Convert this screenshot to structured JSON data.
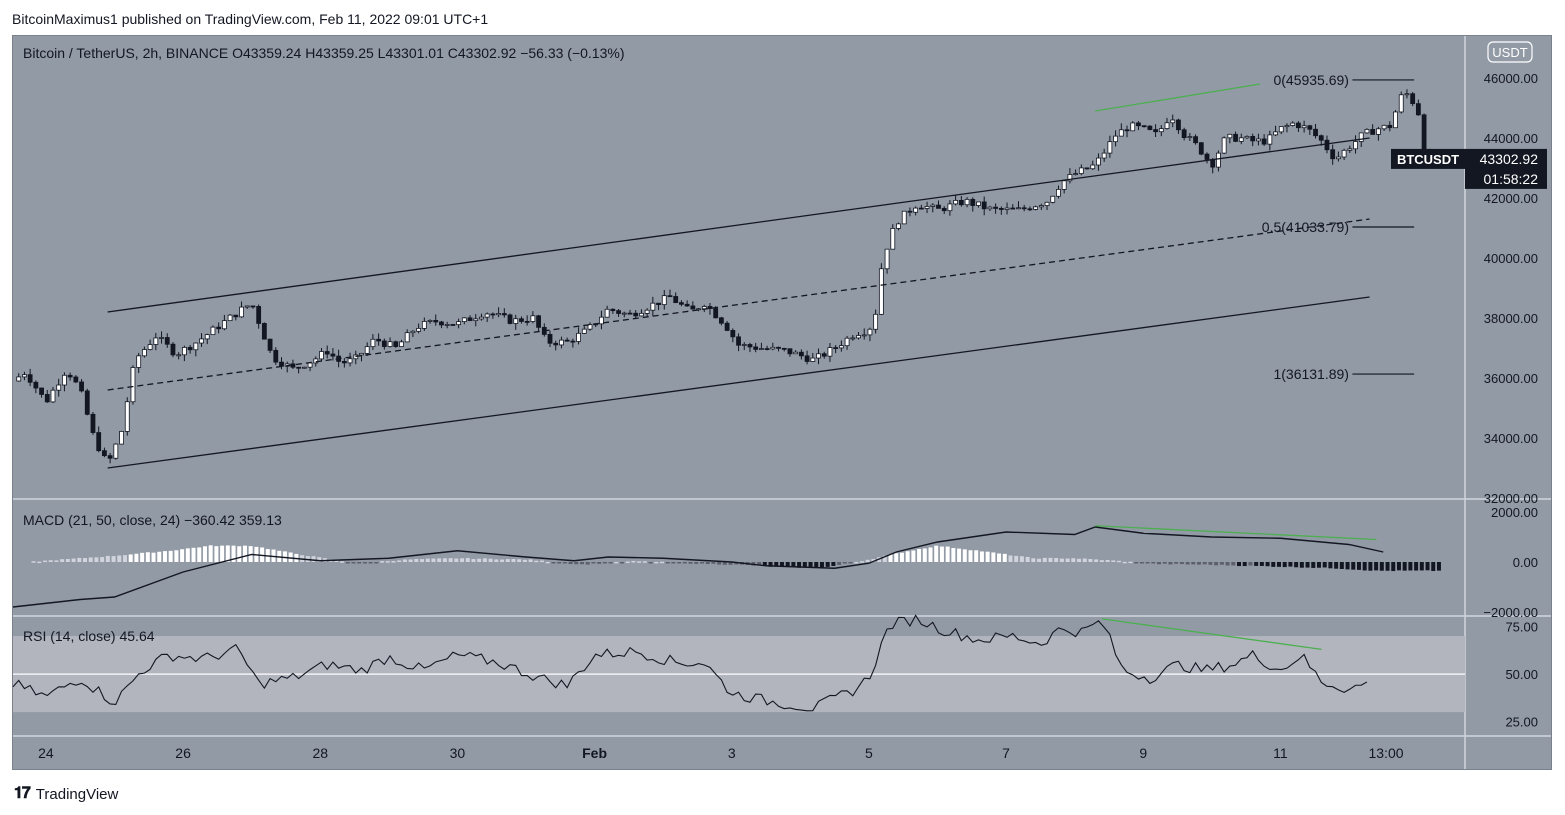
{
  "header": {
    "publisher": "BitcoinMaximus1 published on TradingView.com, Feb 11, 2022 09:01 UTC+1"
  },
  "footer": {
    "brand": "TradingView",
    "logo_icon": "tradingview-logo-icon"
  },
  "colors": {
    "panel_bg": "#929aa5",
    "candle_up": "#ffffff",
    "candle_down": "#131722",
    "divergence": "#4caf50",
    "rsi_band": "#b2b5be"
  },
  "chart_data": [
    {
      "type": "candlestick",
      "title": "Bitcoin / TetherUS, 2h, BINANCE",
      "ohlc_legend": {
        "o_label": "O",
        "o": "43359.24",
        "h_label": "H",
        "h": "43359.25",
        "l_label": "L",
        "l": "43301.01",
        "c_label": "C",
        "c": "43302.92",
        "change": "−56.33 (−0.13%)"
      },
      "currency_badge": "USDT",
      "last_price_tag": {
        "symbol": "BTCUSDT",
        "price": "43302.92",
        "countdown": "01:58:22"
      },
      "y_ticks": [
        "46000.00",
        "44000.00",
        "42000.00",
        "40000.00",
        "38000.00",
        "36000.00",
        "34000.00",
        "32000.00"
      ],
      "y_tick_values": [
        46000,
        44000,
        42000,
        40000,
        38000,
        36000,
        34000,
        32000
      ],
      "ylim": [
        32000,
        47400
      ],
      "x_ticks": [
        "24",
        "26",
        "28",
        "30",
        "Feb",
        "3",
        "5",
        "7",
        "9",
        "11",
        "13:00"
      ],
      "x_tick_day": [
        24,
        26,
        28,
        30,
        32,
        34,
        36,
        38,
        40,
        42,
        43.54
      ],
      "xlim_day": [
        23.52,
        44.4
      ],
      "price_path": [
        [
          23.52,
          35900
        ],
        [
          23.7,
          36200
        ],
        [
          24.0,
          35200
        ],
        [
          24.3,
          36300
        ],
        [
          24.5,
          35600
        ],
        [
          24.7,
          34000
        ],
        [
          24.9,
          33100
        ],
        [
          25.1,
          34200
        ],
        [
          25.3,
          36600
        ],
        [
          25.6,
          37400
        ],
        [
          25.9,
          36800
        ],
        [
          26.2,
          37200
        ],
        [
          26.5,
          37700
        ],
        [
          26.8,
          38200
        ],
        [
          27.0,
          38500
        ],
        [
          27.3,
          36700
        ],
        [
          27.6,
          36300
        ],
        [
          27.9,
          36600
        ],
        [
          28.1,
          36900
        ],
        [
          28.3,
          36500
        ],
        [
          28.5,
          36600
        ],
        [
          28.8,
          37300
        ],
        [
          29.1,
          37000
        ],
        [
          29.4,
          37700
        ],
        [
          29.7,
          37900
        ],
        [
          30.0,
          37800
        ],
        [
          30.4,
          38200
        ],
        [
          30.8,
          37900
        ],
        [
          31.1,
          38000
        ],
        [
          31.3,
          37200
        ],
        [
          31.6,
          37200
        ],
        [
          31.9,
          37600
        ],
        [
          32.2,
          38300
        ],
        [
          32.5,
          38100
        ],
        [
          32.8,
          38400
        ],
        [
          33.1,
          38700
        ],
        [
          33.4,
          38200
        ],
        [
          33.6,
          38500
        ],
        [
          33.9,
          37800
        ],
        [
          34.1,
          37100
        ],
        [
          34.4,
          37000
        ],
        [
          34.8,
          36900
        ],
        [
          35.2,
          36600
        ],
        [
          35.5,
          37000
        ],
        [
          35.8,
          37500
        ],
        [
          36.0,
          37600
        ],
        [
          36.1,
          38200
        ],
        [
          36.2,
          40000
        ],
        [
          36.4,
          41200
        ],
        [
          36.7,
          41800
        ],
        [
          37.0,
          41600
        ],
        [
          37.4,
          41900
        ],
        [
          37.8,
          41600
        ],
        [
          38.2,
          41600
        ],
        [
          38.6,
          41900
        ],
        [
          38.8,
          42500
        ],
        [
          39.0,
          42800
        ],
        [
          39.3,
          43100
        ],
        [
          39.6,
          44100
        ],
        [
          39.8,
          44400
        ],
        [
          40.0,
          44300
        ],
        [
          40.2,
          44100
        ],
        [
          40.4,
          44800
        ],
        [
          40.6,
          44100
        ],
        [
          40.8,
          43700
        ],
        [
          41.0,
          43100
        ],
        [
          41.2,
          44000
        ],
        [
          41.4,
          44000
        ],
        [
          41.6,
          43900
        ],
        [
          41.8,
          43900
        ],
        [
          42.0,
          44300
        ],
        [
          42.2,
          44500
        ],
        [
          42.4,
          44300
        ],
        [
          42.6,
          43900
        ],
        [
          42.8,
          43300
        ],
        [
          43.0,
          43700
        ],
        [
          43.2,
          44100
        ],
        [
          43.4,
          44300
        ],
        [
          43.6,
          44400
        ],
        [
          43.8,
          45600
        ],
        [
          44.0,
          45000
        ],
        [
          44.1,
          43600
        ],
        [
          44.2,
          43100
        ],
        [
          44.3,
          43300
        ],
        [
          44.4,
          43303
        ]
      ],
      "trendlines": [
        {
          "name": "channel-upper",
          "style": "solid",
          "from": [
            24.9,
            38200
          ],
          "to": [
            43.3,
            44000
          ]
        },
        {
          "name": "channel-middle",
          "style": "dashed",
          "from": [
            24.9,
            35600
          ],
          "to": [
            43.3,
            41300
          ]
        },
        {
          "name": "channel-lower",
          "style": "solid",
          "from": [
            24.9,
            33000
          ],
          "to": [
            43.3,
            38700
          ]
        },
        {
          "name": "price-divergence",
          "style": "solid",
          "color": "green",
          "from": [
            39.3,
            44900
          ],
          "to": [
            41.7,
            45800
          ]
        }
      ],
      "fib_levels": [
        {
          "label": "0(45935.69)",
          "value": 45935.69
        },
        {
          "label": "0.5(41033.79)",
          "value": 41033.79
        },
        {
          "label": "1(36131.89)",
          "value": 36131.89
        }
      ]
    },
    {
      "type": "line+histogram",
      "title": "MACD (21, 50, close, 24)",
      "values_label": [
        "−360.42",
        "359.13"
      ],
      "y_ticks": [
        "2000.00",
        "0.00",
        "−2000.00"
      ],
      "y_tick_values": [
        2000,
        0,
        -2000
      ],
      "ylim": [
        -2000,
        2000
      ],
      "macd_line": [
        [
          23.52,
          -1800
        ],
        [
          24.5,
          -1500
        ],
        [
          25.0,
          -1400
        ],
        [
          26.0,
          -400
        ],
        [
          27.0,
          300
        ],
        [
          28.0,
          50
        ],
        [
          29.0,
          150
        ],
        [
          30.0,
          450
        ],
        [
          31.0,
          200
        ],
        [
          31.7,
          50
        ],
        [
          32.2,
          200
        ],
        [
          33.0,
          150
        ],
        [
          34.0,
          0
        ],
        [
          34.5,
          -150
        ],
        [
          35.5,
          -250
        ],
        [
          36.0,
          -50
        ],
        [
          36.4,
          400
        ],
        [
          37.0,
          800
        ],
        [
          38.0,
          1200
        ],
        [
          39.0,
          1100
        ],
        [
          39.3,
          1400
        ],
        [
          40.0,
          1150
        ],
        [
          41.0,
          1000
        ],
        [
          42.0,
          950
        ],
        [
          43.0,
          700
        ],
        [
          43.5,
          400
        ]
      ],
      "histogram": [
        [
          24.0,
          50
        ],
        [
          25.0,
          250
        ],
        [
          25.8,
          450
        ],
        [
          26.4,
          650
        ],
        [
          27.0,
          650
        ],
        [
          27.6,
          350
        ],
        [
          28.5,
          -50
        ],
        [
          29.3,
          100
        ],
        [
          30.0,
          150
        ],
        [
          31.0,
          100
        ],
        [
          31.8,
          -100
        ],
        [
          32.6,
          30
        ],
        [
          33.4,
          -50
        ],
        [
          34.2,
          -120
        ],
        [
          34.8,
          -220
        ],
        [
          35.4,
          -200
        ],
        [
          36.0,
          100
        ],
        [
          36.5,
          400
        ],
        [
          37.0,
          650
        ],
        [
          37.6,
          450
        ],
        [
          38.4,
          150
        ],
        [
          39.0,
          150
        ],
        [
          39.6,
          50
        ],
        [
          40.2,
          -80
        ],
        [
          40.8,
          -100
        ],
        [
          41.5,
          -150
        ],
        [
          42.2,
          -200
        ],
        [
          42.8,
          -250
        ],
        [
          43.4,
          -350
        ]
      ],
      "divergence_line": {
        "color": "green",
        "from": [
          39.3,
          1450
        ],
        "to": [
          43.4,
          900
        ]
      }
    },
    {
      "type": "line",
      "title": "RSI (14, close)",
      "values_label": [
        "45.64"
      ],
      "y_ticks": [
        "75.00",
        "50.00",
        "25.00"
      ],
      "y_tick_values": [
        75,
        50,
        25
      ],
      "ylim": [
        18,
        80
      ],
      "band": [
        30,
        70
      ],
      "midline": 50,
      "rsi_line": [
        [
          23.52,
          45
        ],
        [
          24.0,
          38
        ],
        [
          24.5,
          48
        ],
        [
          25.0,
          35
        ],
        [
          25.4,
          52
        ],
        [
          25.8,
          60
        ],
        [
          26.3,
          58
        ],
        [
          26.8,
          63
        ],
        [
          27.1,
          45
        ],
        [
          27.6,
          48
        ],
        [
          28.1,
          55
        ],
        [
          28.6,
          52
        ],
        [
          29.0,
          59
        ],
        [
          29.5,
          52
        ],
        [
          30.0,
          60
        ],
        [
          30.6,
          56
        ],
        [
          31.2,
          48
        ],
        [
          31.6,
          44
        ],
        [
          32.0,
          60
        ],
        [
          32.6,
          62
        ],
        [
          33.2,
          56
        ],
        [
          33.6,
          56
        ],
        [
          34.0,
          40
        ],
        [
          34.5,
          36
        ],
        [
          35.2,
          32
        ],
        [
          35.8,
          42
        ],
        [
          36.0,
          48
        ],
        [
          36.3,
          76
        ],
        [
          36.7,
          79
        ],
        [
          37.1,
          73
        ],
        [
          37.6,
          68
        ],
        [
          38.1,
          70
        ],
        [
          38.5,
          66
        ],
        [
          38.8,
          74
        ],
        [
          39.1,
          72
        ],
        [
          39.4,
          78
        ],
        [
          39.7,
          52
        ],
        [
          40.1,
          48
        ],
        [
          40.5,
          55
        ],
        [
          40.9,
          52
        ],
        [
          41.3,
          55
        ],
        [
          41.6,
          60
        ],
        [
          42.0,
          52
        ],
        [
          42.3,
          60
        ],
        [
          42.6,
          46
        ],
        [
          43.0,
          42
        ],
        [
          43.3,
          45.64
        ]
      ],
      "divergence_line": {
        "color": "green",
        "from": [
          39.4,
          79
        ],
        "to": [
          42.6,
          63
        ]
      }
    }
  ]
}
